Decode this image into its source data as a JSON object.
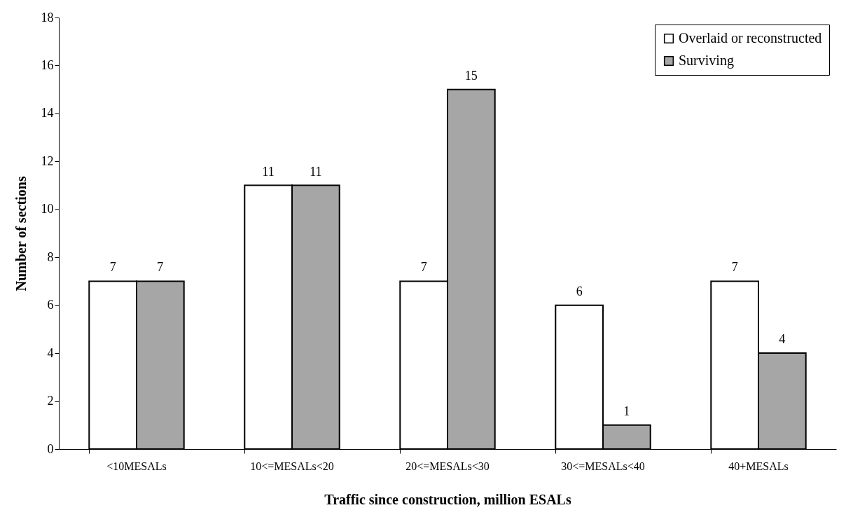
{
  "chart_data": {
    "type": "bar",
    "xlabel": "Traffic since construction, million ESALs",
    "ylabel": "Number of sections",
    "categories": [
      "<10MESALs",
      "10<=MESALs<20",
      "20<=MESALs<30",
      "30<=MESALs<40",
      "40+MESALs"
    ],
    "series": [
      {
        "name": "Overlaid or reconstructed",
        "color": "#ffffff",
        "values": [
          7,
          11,
          7,
          6,
          7
        ]
      },
      {
        "name": "Surviving",
        "color": "#a6a6a6",
        "values": [
          7,
          11,
          15,
          1,
          4
        ]
      }
    ],
    "ylim": [
      0,
      18
    ],
    "yticks": [
      0,
      2,
      4,
      6,
      8,
      10,
      12,
      14,
      16,
      18
    ],
    "grid": false,
    "legend": "top right",
    "data_labels": true
  }
}
